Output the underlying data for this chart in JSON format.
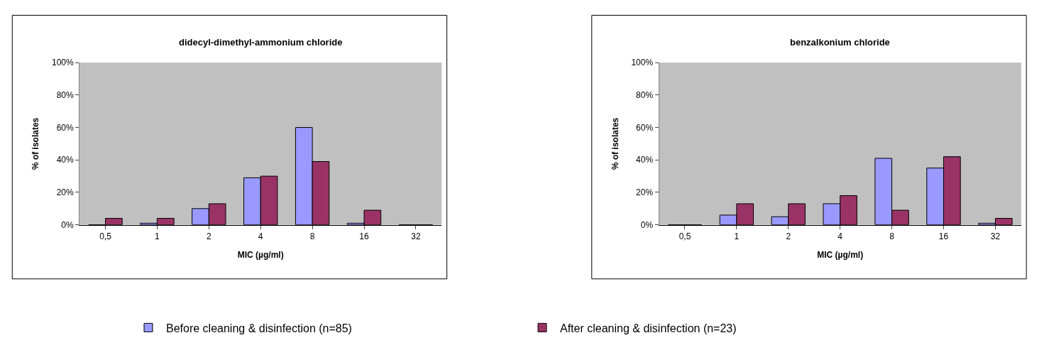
{
  "chart_data": [
    {
      "type": "bar",
      "title": "didecyl-dimethyl-ammonium chloride",
      "xlabel": "MIC (µg/ml)",
      "ylabel": "% of isolates",
      "categories": [
        "0,5",
        "1",
        "2",
        "4",
        "8",
        "16",
        "32"
      ],
      "ylim": [
        0,
        100
      ],
      "yticks": [
        {
          "value": 0,
          "label": "0%"
        },
        {
          "value": 20,
          "label": "20%"
        },
        {
          "value": 40,
          "label": "40%"
        },
        {
          "value": 60,
          "label": "60%"
        },
        {
          "value": 80,
          "label": "80%"
        },
        {
          "value": 100,
          "label": "100%"
        }
      ],
      "legend": "bottom",
      "series": [
        {
          "name": "Before cleaning & disinfection (n=85)",
          "color": "#9999ff",
          "values": [
            0,
            1,
            10,
            29,
            60,
            1,
            0
          ]
        },
        {
          "name": "After cleaning & disinfection (n=23)",
          "color": "#993366",
          "values": [
            4,
            4,
            13,
            30,
            39,
            9,
            0
          ]
        }
      ]
    },
    {
      "type": "bar",
      "title": "benzalkonium chloride",
      "xlabel": "MIC (µg/ml)",
      "ylabel": "% of isolates",
      "categories": [
        "0,5",
        "1",
        "2",
        "4",
        "8",
        "16",
        "32"
      ],
      "ylim": [
        0,
        100
      ],
      "yticks": [
        {
          "value": 0,
          "label": "0%"
        },
        {
          "value": 20,
          "label": "20%"
        },
        {
          "value": 40,
          "label": "40%"
        },
        {
          "value": 60,
          "label": "60%"
        },
        {
          "value": 80,
          "label": "80%"
        },
        {
          "value": 100,
          "label": "100%"
        }
      ],
      "legend": "bottom",
      "series": [
        {
          "color": "#9999ff",
          "values": [
            0,
            6,
            5,
            13,
            41,
            35,
            1
          ]
        },
        {
          "color": "#993366",
          "values": [
            0,
            13,
            13,
            18,
            9,
            42,
            4
          ]
        }
      ]
    }
  ]
}
